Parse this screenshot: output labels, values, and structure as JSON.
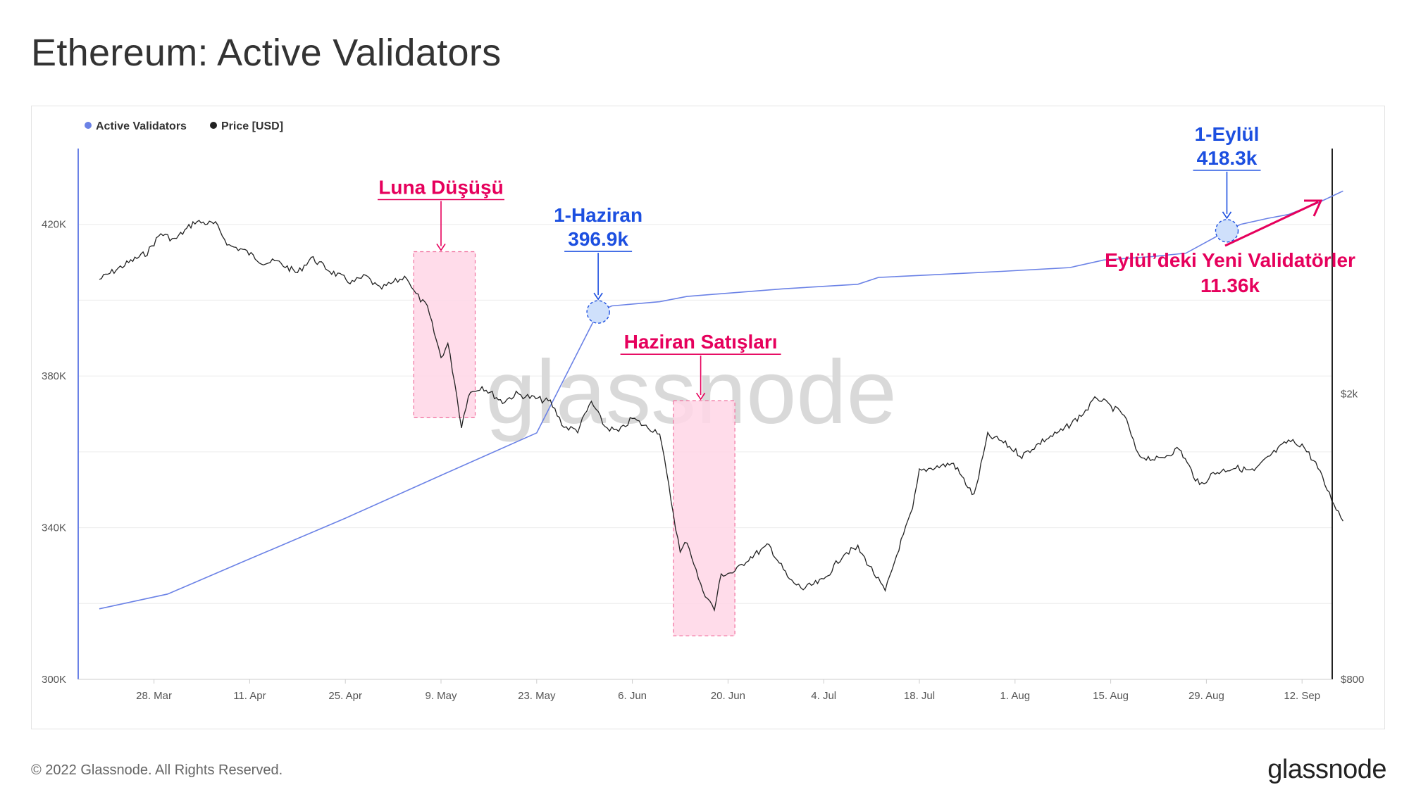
{
  "page": {
    "title": "Ethereum: Active Validators",
    "copyright": "© 2022 Glassnode. All Rights Reserved.",
    "logo": "glassnode",
    "watermark": "glassnode"
  },
  "colors": {
    "validators": "#6b82e6",
    "price": "#222222",
    "highlight_fill": "#ffd6e6",
    "highlight_stroke": "#f0709e",
    "annotation_blue": "#1c4fe0",
    "annotation_pink": "#e6005c",
    "marker_fill": "#cfe0fb"
  },
  "chart_data": {
    "type": "line",
    "legend": {
      "placement": "top-left",
      "items": [
        {
          "label": "Active Validators",
          "color": "#6b82e6"
        },
        {
          "label": "Price [USD]",
          "color": "#222222"
        }
      ]
    },
    "grid": true,
    "x_axis": {
      "type": "date",
      "range": [
        "2022-03-20",
        "2022-09-18"
      ],
      "ticks": [
        {
          "date": "2022-03-28",
          "label": "28. Mar"
        },
        {
          "date": "2022-04-11",
          "label": "11. Apr"
        },
        {
          "date": "2022-04-25",
          "label": "25. Apr"
        },
        {
          "date": "2022-05-09",
          "label": "9. May"
        },
        {
          "date": "2022-05-23",
          "label": "23. May"
        },
        {
          "date": "2022-06-06",
          "label": "6. Jun"
        },
        {
          "date": "2022-06-20",
          "label": "20. Jun"
        },
        {
          "date": "2022-07-04",
          "label": "4. Jul"
        },
        {
          "date": "2022-07-18",
          "label": "18. Jul"
        },
        {
          "date": "2022-08-01",
          "label": "1. Aug"
        },
        {
          "date": "2022-08-15",
          "label": "15. Aug"
        },
        {
          "date": "2022-08-29",
          "label": "29. Aug"
        },
        {
          "date": "2022-09-12",
          "label": "12. Sep"
        }
      ]
    },
    "y_axis_left": {
      "range": [
        300000,
        440000
      ],
      "ticks": [
        {
          "value": 300000,
          "label": "300K"
        },
        {
          "value": 340000,
          "label": "340K"
        },
        {
          "value": 380000,
          "label": "380K"
        },
        {
          "value": 420000,
          "label": "420K"
        }
      ]
    },
    "y_axis_right": {
      "scale": "log",
      "range": [
        800,
        4400
      ],
      "ticks": [
        {
          "value": 800,
          "label": "$800"
        },
        {
          "value": 2000,
          "label": "$2k"
        }
      ]
    },
    "series": [
      {
        "name": "Active Validators",
        "axis": "left",
        "points": [
          [
            "2022-03-20",
            318600
          ],
          [
            "2022-03-30",
            322500
          ],
          [
            "2022-04-10",
            331000
          ],
          [
            "2022-04-25",
            342500
          ],
          [
            "2022-05-09",
            353800
          ],
          [
            "2022-05-23",
            365000
          ],
          [
            "2022-06-01",
            396900
          ],
          [
            "2022-06-03",
            398500
          ],
          [
            "2022-06-10",
            399600
          ],
          [
            "2022-06-14",
            401000
          ],
          [
            "2022-06-21",
            402000
          ],
          [
            "2022-06-28",
            403000
          ],
          [
            "2022-07-09",
            404200
          ],
          [
            "2022-07-12",
            406000
          ],
          [
            "2022-07-20",
            406700
          ],
          [
            "2022-07-30",
            407600
          ],
          [
            "2022-08-09",
            408600
          ],
          [
            "2022-08-14",
            410600
          ],
          [
            "2022-08-21",
            411500
          ],
          [
            "2022-08-26",
            412400
          ],
          [
            "2022-09-01",
            418300
          ],
          [
            "2022-09-03",
            420000
          ],
          [
            "2022-09-07",
            421600
          ],
          [
            "2022-09-10",
            422600
          ],
          [
            "2022-09-14",
            425400
          ],
          [
            "2022-09-18",
            428800
          ]
        ]
      },
      {
        "name": "Price [USD]",
        "axis": "right",
        "points": [
          [
            "2022-03-20",
            2890
          ],
          [
            "2022-03-24",
            3040
          ],
          [
            "2022-03-27",
            3150
          ],
          [
            "2022-03-29",
            3350
          ],
          [
            "2022-03-31",
            3280
          ],
          [
            "2022-04-03",
            3480
          ],
          [
            "2022-04-06",
            3450
          ],
          [
            "2022-04-08",
            3220
          ],
          [
            "2022-04-10",
            3180
          ],
          [
            "2022-04-13",
            3050
          ],
          [
            "2022-04-15",
            3060
          ],
          [
            "2022-04-18",
            2950
          ],
          [
            "2022-04-20",
            3100
          ],
          [
            "2022-04-23",
            2960
          ],
          [
            "2022-04-26",
            2860
          ],
          [
            "2022-04-28",
            2920
          ],
          [
            "2022-04-30",
            2800
          ],
          [
            "2022-05-02",
            2860
          ],
          [
            "2022-05-04",
            2920
          ],
          [
            "2022-05-05",
            2780
          ],
          [
            "2022-05-07",
            2640
          ],
          [
            "2022-05-09",
            2250
          ],
          [
            "2022-05-10",
            2350
          ],
          [
            "2022-05-11",
            2080
          ],
          [
            "2022-05-12",
            1800
          ],
          [
            "2022-05-13",
            2000
          ],
          [
            "2022-05-15",
            2050
          ],
          [
            "2022-05-18",
            1950
          ],
          [
            "2022-05-20",
            2000
          ],
          [
            "2022-05-22",
            1980
          ],
          [
            "2022-05-25",
            1950
          ],
          [
            "2022-05-27",
            1800
          ],
          [
            "2022-05-29",
            1780
          ],
          [
            "2022-05-31",
            1950
          ],
          [
            "2022-06-02",
            1800
          ],
          [
            "2022-06-04",
            1770
          ],
          [
            "2022-06-06",
            1850
          ],
          [
            "2022-06-08",
            1800
          ],
          [
            "2022-06-10",
            1770
          ],
          [
            "2022-06-11",
            1550
          ],
          [
            "2022-06-13",
            1200
          ],
          [
            "2022-06-14",
            1250
          ],
          [
            "2022-06-16",
            1080
          ],
          [
            "2022-06-18",
            1000
          ],
          [
            "2022-06-19",
            1120
          ],
          [
            "2022-06-21",
            1130
          ],
          [
            "2022-06-23",
            1180
          ],
          [
            "2022-06-26",
            1230
          ],
          [
            "2022-06-29",
            1100
          ],
          [
            "2022-07-01",
            1070
          ],
          [
            "2022-07-04",
            1100
          ],
          [
            "2022-07-07",
            1200
          ],
          [
            "2022-07-09",
            1220
          ],
          [
            "2022-07-11",
            1140
          ],
          [
            "2022-07-13",
            1060
          ],
          [
            "2022-07-15",
            1220
          ],
          [
            "2022-07-17",
            1380
          ],
          [
            "2022-07-18",
            1560
          ],
          [
            "2022-07-20",
            1580
          ],
          [
            "2022-07-23",
            1600
          ],
          [
            "2022-07-26",
            1440
          ],
          [
            "2022-07-28",
            1750
          ],
          [
            "2022-07-30",
            1720
          ],
          [
            "2022-08-02",
            1640
          ],
          [
            "2022-08-05",
            1720
          ],
          [
            "2022-08-08",
            1780
          ],
          [
            "2022-08-11",
            1880
          ],
          [
            "2022-08-13",
            1980
          ],
          [
            "2022-08-15",
            1920
          ],
          [
            "2022-08-17",
            1870
          ],
          [
            "2022-08-19",
            1640
          ],
          [
            "2022-08-22",
            1620
          ],
          [
            "2022-08-25",
            1680
          ],
          [
            "2022-08-28",
            1490
          ],
          [
            "2022-08-30",
            1550
          ],
          [
            "2022-09-02",
            1580
          ],
          [
            "2022-09-05",
            1560
          ],
          [
            "2022-09-07",
            1630
          ],
          [
            "2022-09-10",
            1720
          ],
          [
            "2022-09-12",
            1700
          ],
          [
            "2022-09-14",
            1600
          ],
          [
            "2022-09-16",
            1450
          ],
          [
            "2022-09-18",
            1330
          ]
        ]
      }
    ],
    "highlights": [
      {
        "from": "2022-05-05",
        "to": "2022-05-14",
        "y_top": 412800,
        "y_bottom": 369000
      },
      {
        "from": "2022-06-12",
        "to": "2022-06-21",
        "y_top": 373500,
        "y_bottom": 311500
      }
    ],
    "annotations": [
      {
        "kind": "box-label",
        "text": "Luna Düşüşü",
        "color": "pink",
        "date": "2022-05-09",
        "value": 412800
      },
      {
        "kind": "box-label",
        "text": "Haziran Satışları",
        "color": "pink",
        "date": "2022-06-16",
        "value": 373500
      },
      {
        "kind": "point",
        "text": [
          "1-Haziran",
          "396.9k"
        ],
        "color": "blue",
        "date": "2022-06-01",
        "value": 396900
      },
      {
        "kind": "point",
        "text": [
          "1-Eylül",
          "418.3k"
        ],
        "color": "blue",
        "date": "2022-09-01",
        "value": 418300
      },
      {
        "kind": "arrow-note",
        "text": [
          "Eylül’deki Yeni Validatörler",
          "11.36k"
        ],
        "color": "pink"
      }
    ]
  }
}
